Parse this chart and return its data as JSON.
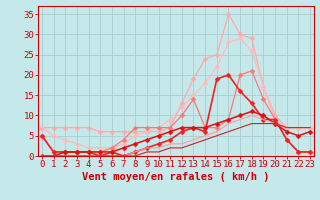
{
  "background_color": "#c5e8eb",
  "grid_color": "#aacdd2",
  "line_series": [
    {
      "color": "#ffaaaa",
      "alpha": 1.0,
      "linewidth": 0.9,
      "marker": "D",
      "markersize": 2.5,
      "x": [
        0,
        1,
        2,
        3,
        4,
        5,
        6,
        7,
        8,
        9,
        10,
        11,
        12,
        13,
        14,
        15,
        16,
        17,
        18,
        19,
        20,
        21,
        22,
        23
      ],
      "y": [
        7,
        7,
        7,
        7,
        7,
        6,
        6,
        6,
        6,
        6,
        6,
        7,
        13,
        19,
        24,
        25,
        35,
        30,
        29,
        17,
        10,
        7,
        7,
        7
      ]
    },
    {
      "color": "#ffbbbb",
      "alpha": 1.0,
      "linewidth": 0.9,
      "marker": "D",
      "markersize": 2.5,
      "x": [
        0,
        1,
        2,
        3,
        4,
        5,
        6,
        7,
        8,
        9,
        10,
        11,
        12,
        13,
        14,
        15,
        16,
        17,
        18,
        19,
        20,
        21,
        22,
        23
      ],
      "y": [
        7,
        5,
        4,
        3,
        2,
        2,
        2,
        3,
        5,
        6,
        7,
        9,
        12,
        15,
        18,
        22,
        28,
        29,
        26,
        17,
        9,
        7,
        7,
        7
      ]
    },
    {
      "color": "#ff7777",
      "alpha": 1.0,
      "linewidth": 0.9,
      "marker": "D",
      "markersize": 2.5,
      "x": [
        0,
        1,
        2,
        3,
        4,
        5,
        6,
        7,
        8,
        9,
        10,
        11,
        12,
        13,
        14,
        15,
        16,
        17,
        18,
        19,
        20,
        21,
        22,
        23
      ],
      "y": [
        5,
        1,
        1,
        1,
        1,
        1,
        2,
        4,
        7,
        7,
        7,
        7,
        10,
        14,
        7,
        7,
        9,
        20,
        21,
        14,
        9,
        4,
        1,
        1
      ]
    },
    {
      "color": "#ee2222",
      "alpha": 1.0,
      "linewidth": 1.2,
      "marker": "D",
      "markersize": 2.5,
      "x": [
        0,
        1,
        2,
        3,
        4,
        5,
        6,
        7,
        8,
        9,
        10,
        11,
        12,
        13,
        14,
        15,
        16,
        17,
        18,
        19,
        20,
        21,
        22,
        23
      ],
      "y": [
        5,
        1,
        1,
        1,
        1,
        0,
        1,
        0,
        1,
        2,
        3,
        4,
        6,
        7,
        6,
        19,
        20,
        16,
        13,
        9,
        9,
        4,
        1,
        1
      ]
    },
    {
      "color": "#dd1111",
      "alpha": 1.0,
      "linewidth": 1.1,
      "marker": "D",
      "markersize": 2.5,
      "x": [
        0,
        1,
        2,
        3,
        4,
        5,
        6,
        7,
        8,
        9,
        10,
        11,
        12,
        13,
        14,
        15,
        16,
        17,
        18,
        19,
        20,
        21,
        22,
        23
      ],
      "y": [
        0,
        0,
        1,
        1,
        1,
        1,
        1,
        2,
        3,
        4,
        5,
        6,
        7,
        7,
        7,
        8,
        9,
        10,
        11,
        10,
        8,
        6,
        5,
        6
      ]
    },
    {
      "color": "#ff9999",
      "alpha": 1.0,
      "linewidth": 0.8,
      "marker": null,
      "markersize": 0,
      "x": [
        0,
        1,
        2,
        3,
        4,
        5,
        6,
        7,
        8,
        9,
        10,
        11,
        12,
        13,
        14,
        15,
        16,
        17,
        18,
        19,
        20,
        21,
        22,
        23
      ],
      "y": [
        0,
        0,
        0,
        0,
        0,
        0,
        0,
        0,
        1,
        2,
        2,
        3,
        3,
        4,
        5,
        6,
        8,
        9,
        10,
        9,
        8,
        7,
        7,
        7
      ]
    },
    {
      "color": "#cc2222",
      "alpha": 1.0,
      "linewidth": 0.8,
      "marker": null,
      "markersize": 0,
      "x": [
        0,
        1,
        2,
        3,
        4,
        5,
        6,
        7,
        8,
        9,
        10,
        11,
        12,
        13,
        14,
        15,
        16,
        17,
        18,
        19,
        20,
        21,
        22,
        23
      ],
      "y": [
        0,
        0,
        0,
        0,
        0,
        0,
        0,
        0,
        0,
        1,
        1,
        2,
        2,
        3,
        4,
        5,
        6,
        7,
        8,
        8,
        8,
        7,
        7,
        7
      ]
    }
  ],
  "xlabel": "Vent moyen/en rafales ( km/h )",
  "xlabel_color": "#cc0000",
  "xlabel_fontsize": 7.5,
  "xtick_labels": [
    "0",
    "1",
    "2",
    "3",
    "4",
    "5",
    "6",
    "7",
    "8",
    "9",
    "10",
    "11",
    "12",
    "13",
    "14",
    "15",
    "16",
    "17",
    "18",
    "19",
    "20",
    "21",
    "22",
    "23"
  ],
  "ytick_labels": [
    "0",
    "5",
    "10",
    "15",
    "20",
    "25",
    "30",
    "35"
  ],
  "yticks": [
    0,
    5,
    10,
    15,
    20,
    25,
    30,
    35
  ],
  "xlim": [
    -0.3,
    23.3
  ],
  "ylim": [
    0,
    37
  ],
  "tick_color": "#cc0000",
  "tick_fontsize": 6.5,
  "axis_color": "#cc0000"
}
